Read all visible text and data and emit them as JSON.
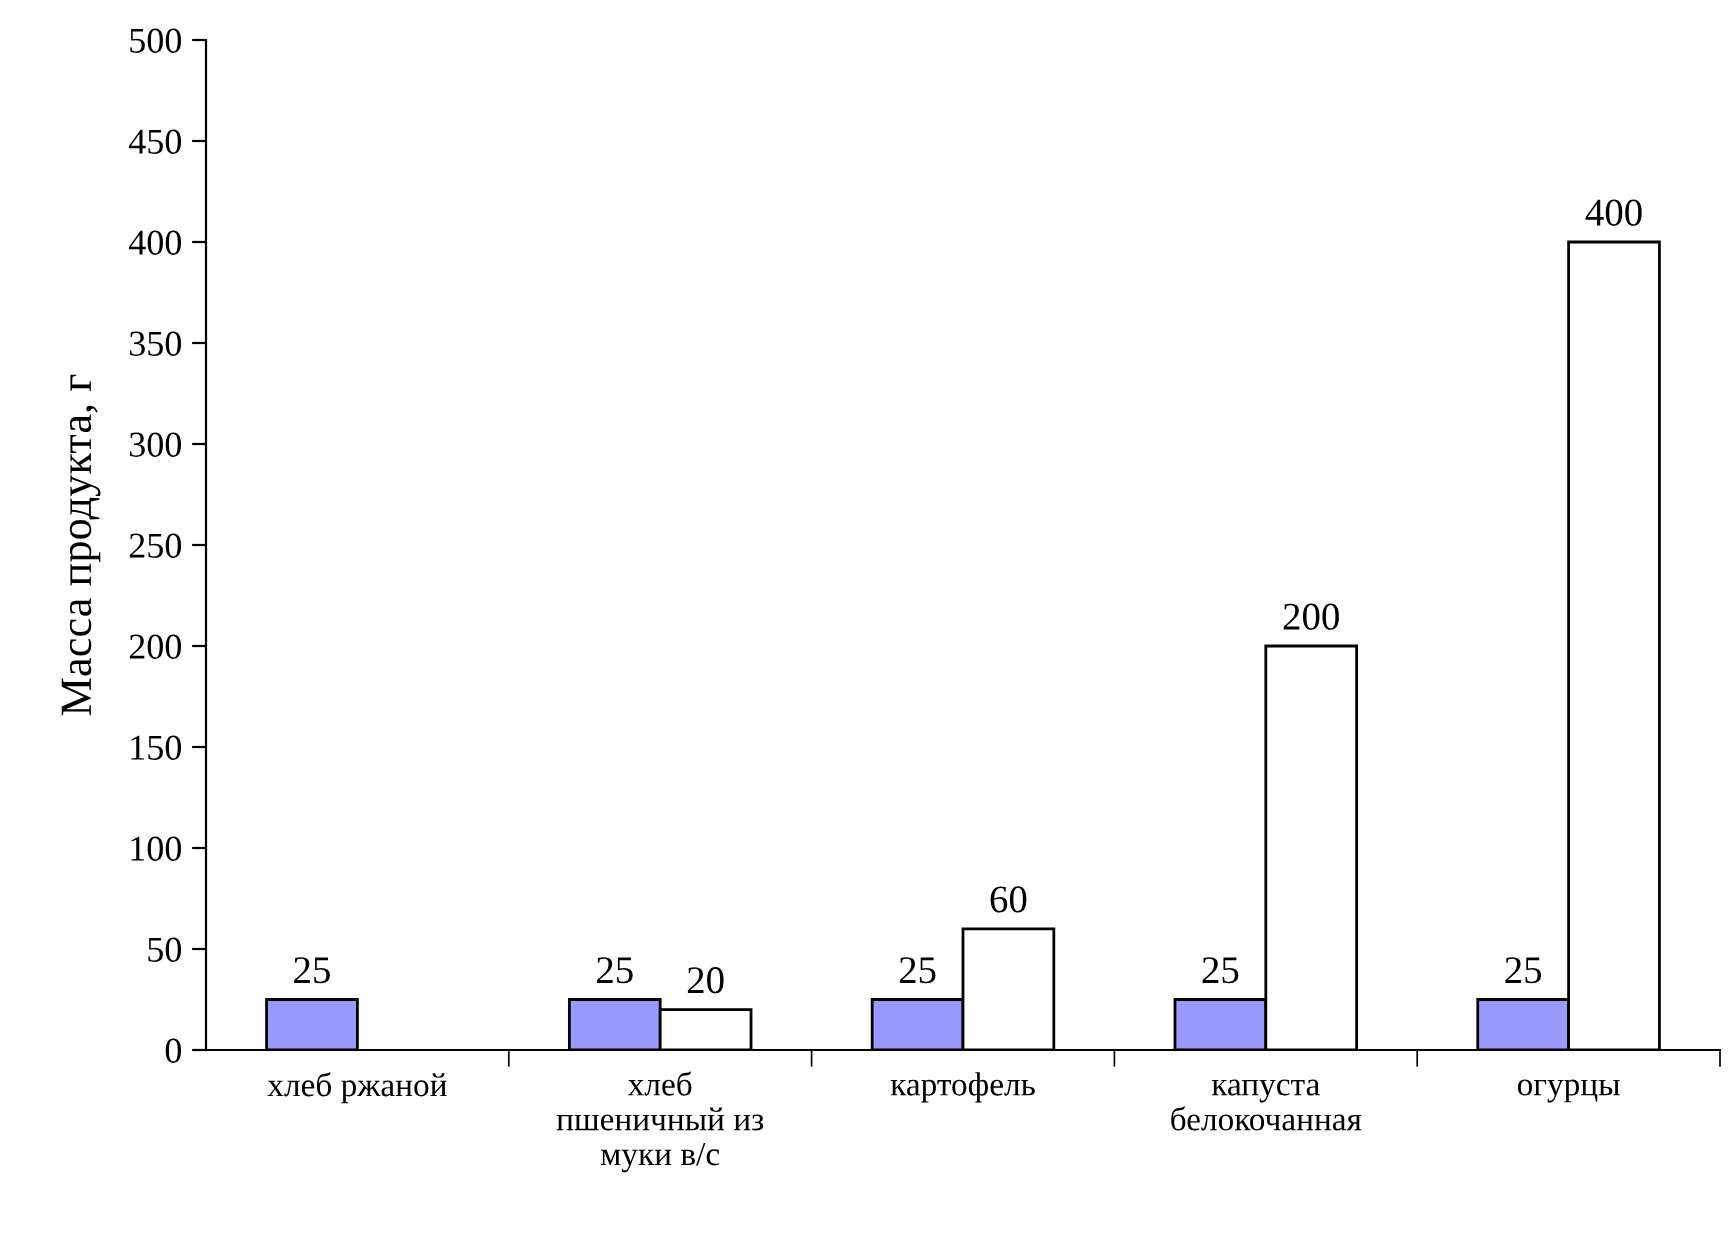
{
  "chart_data": {
    "type": "bar",
    "ylabel": "Масса продукта, г",
    "categories": [
      "хлеб ржаной",
      "хлеб\nпшеничный из\nмуки в/с",
      "картофель",
      "капуста\nбелокочанная",
      "огурцы"
    ],
    "series": [
      {
        "color": "#9999ff",
        "values": [
          25,
          25,
          25,
          25,
          25
        ]
      },
      {
        "color": "#ffffff",
        "values": [
          null,
          20,
          60,
          200,
          400
        ]
      }
    ],
    "ylim": [
      0,
      500
    ],
    "yticks": [
      0,
      50,
      100,
      150,
      200,
      250,
      300,
      350,
      400,
      450,
      500
    ],
    "data_labels": true,
    "grid": false,
    "legend": false
  }
}
